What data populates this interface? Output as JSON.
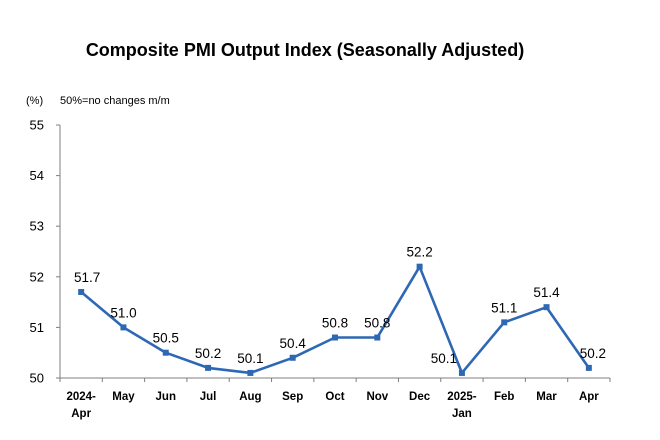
{
  "chart_data": {
    "type": "line",
    "title": "Composite PMI Output Index (Seasonally Adjusted)",
    "unit_label": "(%)",
    "note": "50%=no changes m/m",
    "categories": [
      [
        "2024-",
        "Apr"
      ],
      [
        "May"
      ],
      [
        "Jun"
      ],
      [
        "Jul"
      ],
      [
        "Aug"
      ],
      [
        "Sep"
      ],
      [
        "Oct"
      ],
      [
        "Nov"
      ],
      [
        "Dec"
      ],
      [
        "2025-",
        "Jan"
      ],
      [
        "Feb"
      ],
      [
        "Mar"
      ],
      [
        "Apr"
      ]
    ],
    "series": [
      {
        "values": [
          51.7,
          51.0,
          50.5,
          50.2,
          50.1,
          50.4,
          50.8,
          50.8,
          52.2,
          50.1,
          51.1,
          51.4,
          50.2
        ]
      }
    ],
    "data_labels": [
      "51.7",
      "51.0",
      "50.5",
      "50.2",
      "50.1",
      "50.4",
      "50.8",
      "50.8",
      "52.2",
      "50.1",
      "51.1",
      "51.4",
      "50.2"
    ],
    "ylim": [
      50,
      55
    ],
    "yticks": [
      "50",
      "51",
      "52",
      "53",
      "54",
      "55"
    ],
    "grid": false,
    "legend": "none",
    "colors": {
      "line": "#2E68B4",
      "axis": "#7f7f7f",
      "text": "#000000"
    }
  }
}
